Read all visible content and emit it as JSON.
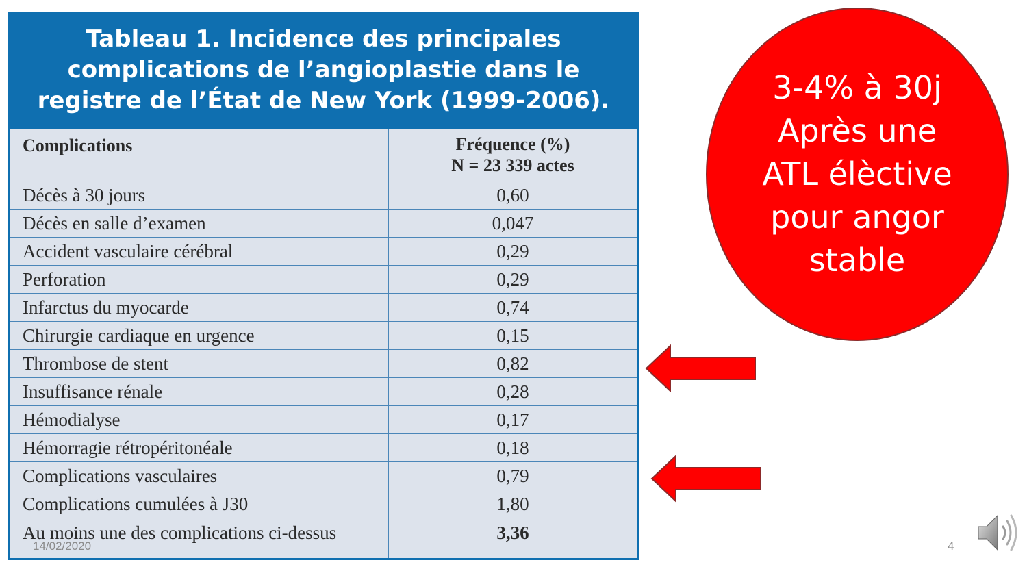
{
  "table": {
    "title_lines": [
      "Tableau 1. Incidence des principales",
      "complications de l’angioplastie dans le",
      "registre de l’État de New York (1999-2006)."
    ],
    "col1_header": "Complications",
    "col2_header_line1": "Fréquence (%)",
    "col2_header_line2": "N = 23 339 actes",
    "rows": [
      {
        "label": "Décès à 30 jours",
        "value": "0,60"
      },
      {
        "label": "Décès en salle d’examen",
        "value": "0,047"
      },
      {
        "label": "Accident vasculaire cérébral",
        "value": "0,29"
      },
      {
        "label": "Perforation",
        "value": "0,29"
      },
      {
        "label": "Infarctus du myocarde",
        "value": "0,74"
      },
      {
        "label": "Chirurgie cardiaque en urgence",
        "value": "0,15"
      },
      {
        "label": "Thrombose de stent",
        "value": "0,82"
      },
      {
        "label": "Insuffisance rénale",
        "value": "0,28"
      },
      {
        "label": "Hémodialyse",
        "value": "0,17"
      },
      {
        "label": "Hémorragie rétropéritonéale",
        "value": "0,18"
      },
      {
        "label": "Complications vasculaires",
        "value": "0,79"
      },
      {
        "label": "Complications cumulées à J30",
        "value": "1,80"
      },
      {
        "label": "Au moins une des complications ci-dessus",
        "value": "3,36"
      }
    ]
  },
  "bubble": {
    "lines": [
      "3-4% à 30j",
      "Après une",
      "ATL élèctive",
      "pour angor",
      "stable"
    ],
    "color": "#ff0000"
  },
  "footer": {
    "date": "14/02/2020",
    "page_number": "4"
  },
  "icons": {
    "arrows": "left-arrow-icon",
    "audio": "speaker-icon"
  }
}
